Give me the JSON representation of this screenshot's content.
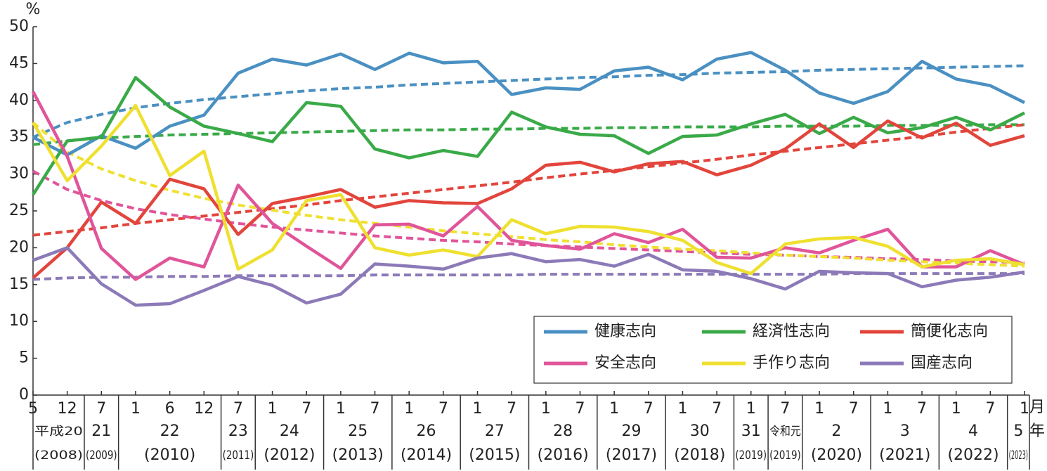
{
  "chart_data": {
    "type": "line",
    "y_unit": "%",
    "x_unit_month": "月",
    "x_unit_year": "年",
    "ylim": [
      0,
      50
    ],
    "yticks": [
      0,
      5,
      10,
      15,
      20,
      25,
      30,
      35,
      40,
      45,
      50
    ],
    "grid": false,
    "legend": "lower-right",
    "categories": [
      "5",
      "12",
      "7",
      "1",
      "6",
      "12",
      "7",
      "1",
      "7",
      "1",
      "7",
      "1",
      "7",
      "1",
      "7",
      "1",
      "7",
      "1",
      "7",
      "1",
      "7",
      "1",
      "7",
      "1",
      "7",
      "1",
      "7",
      "1",
      "7",
      "1"
    ],
    "year_groups": [
      {
        "label": "平成20",
        "western": "(2008)",
        "size": 2
      },
      {
        "label": "21",
        "western": "(2009)",
        "size": 1
      },
      {
        "label": "22",
        "western": "(2010)",
        "size": 3
      },
      {
        "label": "23",
        "western": "(2011)",
        "size": 1
      },
      {
        "label": "24",
        "western": "(2012)",
        "size": 2
      },
      {
        "label": "25",
        "western": "(2013)",
        "size": 2
      },
      {
        "label": "26",
        "western": "(2014)",
        "size": 2
      },
      {
        "label": "27",
        "western": "(2015)",
        "size": 2
      },
      {
        "label": "28",
        "western": "(2016)",
        "size": 2
      },
      {
        "label": "29",
        "western": "(2017)",
        "size": 2
      },
      {
        "label": "30",
        "western": "(2018)",
        "size": 2
      },
      {
        "label": "31",
        "western": "(2019)",
        "size": 1
      },
      {
        "label": "令和元",
        "western": "(2019)",
        "size": 1
      },
      {
        "label": "2",
        "western": "(2020)",
        "size": 2
      },
      {
        "label": "3",
        "western": "(2021)",
        "size": 2
      },
      {
        "label": "4",
        "western": "(2022)",
        "size": 2
      },
      {
        "label": "5",
        "western": "(2023)",
        "size": 1
      }
    ],
    "series": [
      {
        "name": "健康志向",
        "color": "#4a90c2",
        "values": [
          35.0,
          32.6,
          35.2,
          33.5,
          36.5,
          38.0,
          43.7,
          45.6,
          44.8,
          46.3,
          44.2,
          46.4,
          45.1,
          45.3,
          40.8,
          41.7,
          41.5,
          44.0,
          44.5,
          42.8,
          45.6,
          46.5,
          44.1,
          41.0,
          39.6,
          41.2,
          45.3,
          42.9,
          42.0,
          39.7
        ],
        "trend": [
          35.0,
          37.0,
          38.1,
          39.0,
          39.6,
          40.1,
          40.5,
          40.9,
          41.3,
          41.6,
          41.8,
          42.1,
          42.3,
          42.5,
          42.7,
          42.9,
          43.1,
          43.2,
          43.4,
          43.5,
          43.7,
          43.8,
          43.9,
          44.1,
          44.2,
          44.3,
          44.4,
          44.5,
          44.6,
          44.7
        ]
      },
      {
        "name": "経済性志向",
        "color": "#3aaa48",
        "values": [
          27.2,
          34.5,
          35.0,
          43.1,
          39.1,
          36.5,
          35.5,
          34.4,
          39.7,
          39.2,
          33.4,
          32.2,
          33.2,
          32.4,
          38.4,
          36.4,
          35.4,
          35.2,
          32.8,
          35.1,
          35.3,
          36.8,
          38.1,
          35.5,
          37.7,
          35.6,
          36.3,
          37.7,
          36.0,
          38.3
        ],
        "trend": [
          34.0,
          34.5,
          34.9,
          35.1,
          35.3,
          35.4,
          35.5,
          35.6,
          35.7,
          35.8,
          35.9,
          36.0,
          36.0,
          36.1,
          36.1,
          36.2,
          36.2,
          36.3,
          36.3,
          36.4,
          36.4,
          36.4,
          36.5,
          36.5,
          36.5,
          36.6,
          36.6,
          36.6,
          36.7,
          36.7
        ]
      },
      {
        "name": "簡便化志向",
        "color": "#e2453c",
        "values": [
          15.9,
          20.0,
          26.2,
          23.3,
          29.3,
          28.0,
          21.8,
          26.0,
          26.9,
          27.9,
          25.5,
          26.4,
          26.1,
          26.0,
          28.0,
          31.2,
          31.6,
          30.3,
          31.4,
          31.7,
          29.9,
          31.2,
          33.4,
          36.8,
          33.6,
          37.2,
          34.9,
          36.9,
          33.9,
          35.2
        ],
        "trend": [
          21.7,
          22.2,
          22.7,
          23.3,
          23.8,
          24.3,
          24.8,
          25.3,
          25.8,
          26.4,
          26.9,
          27.4,
          27.9,
          28.4,
          28.9,
          29.5,
          30.0,
          30.5,
          31.0,
          31.5,
          32.0,
          32.6,
          33.1,
          33.6,
          34.1,
          34.6,
          35.1,
          35.7,
          36.2,
          36.7
        ]
      },
      {
        "name": "安全志向",
        "color": "#e0559a",
        "values": [
          41.2,
          32.4,
          19.9,
          15.7,
          18.6,
          17.4,
          28.5,
          23.3,
          20.2,
          17.2,
          23.1,
          23.2,
          21.6,
          25.6,
          21.0,
          20.3,
          19.8,
          21.9,
          20.7,
          22.5,
          18.7,
          18.6,
          20.0,
          19.3,
          21.0,
          22.5,
          17.4,
          17.4,
          19.6,
          17.7
        ],
        "trend": [
          30.4,
          27.9,
          26.4,
          25.3,
          24.5,
          23.9,
          23.3,
          22.8,
          22.4,
          22.0,
          21.6,
          21.3,
          21.0,
          20.8,
          20.5,
          20.3,
          20.1,
          19.9,
          19.7,
          19.5,
          19.3,
          19.1,
          19.0,
          18.8,
          18.7,
          18.5,
          18.4,
          18.2,
          18.1,
          18.0
        ]
      },
      {
        "name": "手作り志向",
        "color": "#efe030",
        "values": [
          37.0,
          29.1,
          33.8,
          39.3,
          29.8,
          33.1,
          17.1,
          19.7,
          26.4,
          27.2,
          20.0,
          19.0,
          19.7,
          18.8,
          23.8,
          21.9,
          22.9,
          22.8,
          22.2,
          21.0,
          18.0,
          16.5,
          20.5,
          21.2,
          21.4,
          20.2,
          17.4,
          18.3,
          18.5,
          17.7
        ],
        "trend": [
          37.0,
          33.0,
          30.7,
          29.1,
          27.8,
          26.7,
          25.8,
          25.1,
          24.4,
          23.8,
          23.3,
          22.8,
          22.3,
          21.9,
          21.5,
          21.1,
          20.8,
          20.4,
          20.1,
          19.8,
          19.6,
          19.3,
          19.0,
          18.8,
          18.6,
          18.3,
          18.1,
          17.9,
          17.7,
          17.5
        ]
      },
      {
        "name": "国産志向",
        "color": "#8c7ab8",
        "values": [
          18.3,
          20.0,
          15.1,
          12.2,
          12.4,
          14.2,
          16.1,
          14.9,
          12.5,
          13.7,
          17.8,
          17.5,
          17.1,
          18.6,
          19.2,
          18.1,
          18.4,
          17.5,
          19.1,
          17.0,
          16.8,
          15.8,
          14.4,
          16.8,
          16.6,
          16.5,
          14.7,
          15.6,
          16.0,
          16.7
        ],
        "trend": [
          15.7,
          15.9,
          16.0,
          16.0,
          16.1,
          16.1,
          16.2,
          16.2,
          16.2,
          16.2,
          16.3,
          16.3,
          16.3,
          16.3,
          16.3,
          16.4,
          16.4,
          16.4,
          16.4,
          16.4,
          16.4,
          16.4,
          16.4,
          16.4,
          16.5,
          16.5,
          16.5,
          16.5,
          16.5,
          16.5
        ]
      }
    ]
  }
}
